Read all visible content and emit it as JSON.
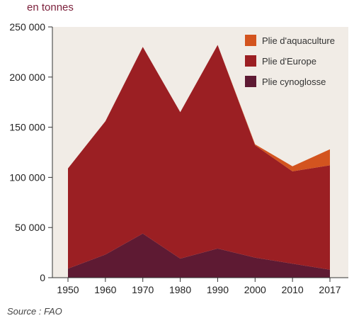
{
  "unit_label": "en tonnes",
  "source": "Source : FAO",
  "chart_data": {
    "type": "area",
    "stacked": true,
    "x": [
      1950,
      1960,
      1970,
      1980,
      1990,
      2000,
      2010,
      2017
    ],
    "xticks": [
      "1950",
      "1960",
      "1970",
      "1980",
      "1990",
      "2000",
      "2010",
      "2017"
    ],
    "ylim": [
      0,
      250000
    ],
    "yticks": [
      0,
      50000,
      100000,
      150000,
      200000,
      250000
    ],
    "ytick_labels": [
      "0",
      "50 000",
      "100 000",
      "150 000",
      "200 000",
      "250 000"
    ],
    "grid": false,
    "background": "#f1ece6",
    "legend_position": "top-right",
    "series": [
      {
        "name": "Plie cynoglosse",
        "color": "#5e1a33",
        "values": [
          9000,
          23000,
          44000,
          19000,
          29000,
          20000,
          14000,
          8000
        ]
      },
      {
        "name": "Plie d'Europe",
        "color": "#9b1f23",
        "values": [
          100000,
          133000,
          186000,
          146000,
          203000,
          112000,
          92000,
          104000
        ]
      },
      {
        "name": "Plie d'aquaculture",
        "color": "#d3541f",
        "values": [
          0,
          0,
          0,
          0,
          0,
          1000,
          5000,
          16000
        ]
      }
    ],
    "legend_order": [
      "Plie d'aquaculture",
      "Plie d'Europe",
      "Plie cynoglosse"
    ]
  }
}
